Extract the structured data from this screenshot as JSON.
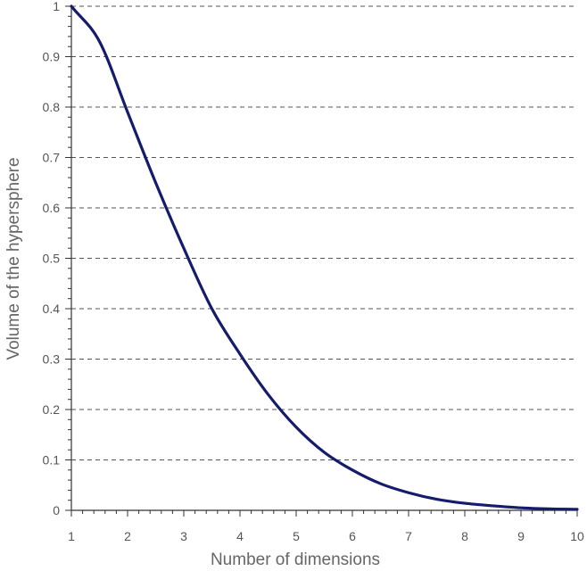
{
  "chart_data": {
    "type": "line",
    "title": "",
    "xlabel": "Number of dimensions",
    "ylabel": "Volume of the hypersphere",
    "xlim": [
      1,
      10
    ],
    "ylim": [
      0,
      1
    ],
    "x_ticks": [
      "1",
      "2",
      "3",
      "4",
      "5",
      "6",
      "7",
      "8",
      "9",
      "10"
    ],
    "y_ticks": [
      "0",
      "0.1",
      "0.2",
      "0.3",
      "0.4",
      "0.5",
      "0.6",
      "0.7",
      "0.8",
      "0.9",
      "1"
    ],
    "grid": "horizontal dashed",
    "line_color": "#141c6b",
    "series": [
      {
        "x": [
          1,
          1.5,
          2,
          2.5,
          3,
          3.5,
          4,
          4.5,
          5,
          5.5,
          6,
          6.5,
          7,
          7.5,
          8,
          8.5,
          9,
          9.5,
          10
        ],
        "y": [
          1.0,
          0.93,
          0.79,
          0.65,
          0.52,
          0.4,
          0.31,
          0.23,
          0.165,
          0.115,
          0.08,
          0.053,
          0.035,
          0.022,
          0.014,
          0.009,
          0.005,
          0.003,
          0.002
        ]
      }
    ]
  }
}
